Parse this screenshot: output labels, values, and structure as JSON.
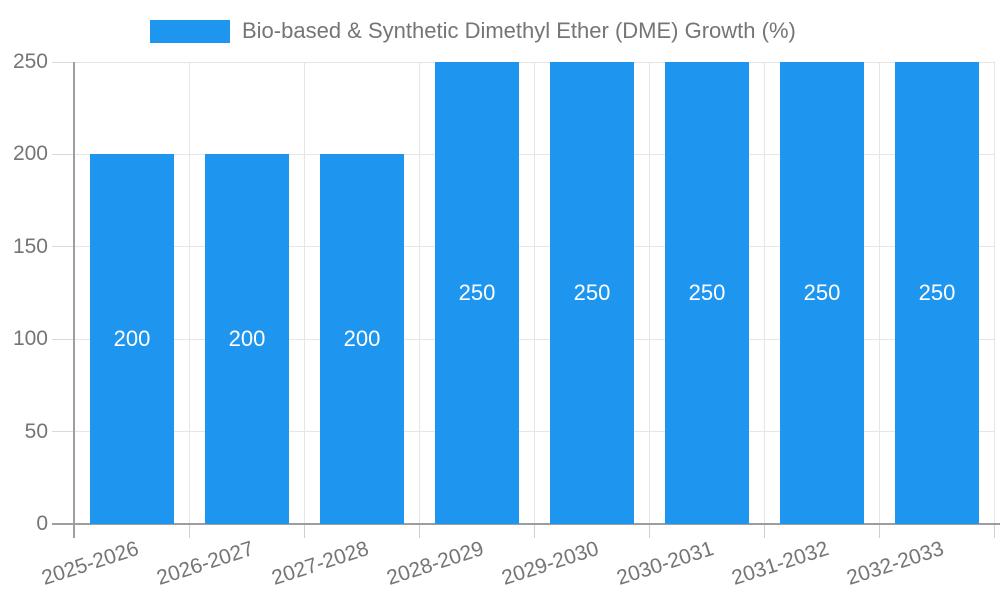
{
  "legend": {
    "label": "Bio-based & Synthetic Dimethyl Ether (DME) Growth (%)"
  },
  "colors": {
    "bar": "#1E96F0",
    "background": "#FFFFFF",
    "grid_line": "#E6E6E6",
    "axis_line": "#9E9E9E",
    "tick_mark": "#CFCFCF",
    "tick_text": "#757575",
    "value_label_text": "#FFFFFF"
  },
  "chart_data": {
    "type": "bar",
    "title": "Bio-based & Synthetic Dimethyl Ether (DME) Growth (%)",
    "categories": [
      "2025-2026",
      "2026-2027",
      "2027-2028",
      "2028-2029",
      "2029-2030",
      "2030-2031",
      "2031-2032",
      "2032-2033"
    ],
    "values": [
      200,
      200,
      200,
      250,
      250,
      250,
      250,
      250
    ],
    "value_labels": [
      "200",
      "200",
      "200",
      "250",
      "250",
      "250",
      "250",
      "250"
    ],
    "xlabel": "",
    "ylabel": "",
    "ylim": [
      0,
      250
    ],
    "yticks": [
      0,
      50,
      100,
      150,
      200,
      250
    ],
    "grid": true,
    "legend_position": "top",
    "x_tick_rotation_deg": -18
  }
}
